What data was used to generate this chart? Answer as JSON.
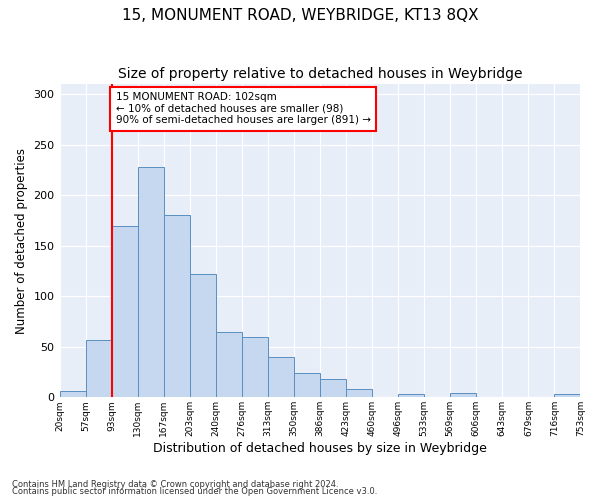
{
  "title": "15, MONUMENT ROAD, WEYBRIDGE, KT13 8QX",
  "subtitle": "Size of property relative to detached houses in Weybridge",
  "xlabel": "Distribution of detached houses by size in Weybridge",
  "ylabel": "Number of detached properties",
  "bar_values": [
    6,
    57,
    170,
    228,
    180,
    122,
    65,
    60,
    40,
    24,
    18,
    8,
    0,
    3,
    0,
    4,
    0,
    0,
    0,
    3
  ],
  "bin_labels": [
    "20sqm",
    "57sqm",
    "93sqm",
    "130sqm",
    "167sqm",
    "203sqm",
    "240sqm",
    "276sqm",
    "313sqm",
    "350sqm",
    "386sqm",
    "423sqm",
    "460sqm",
    "496sqm",
    "533sqm",
    "569sqm",
    "606sqm",
    "643sqm",
    "679sqm",
    "716sqm",
    "753sqm"
  ],
  "bar_color": "#c5d8f0",
  "bar_edge_color": "#5a8fc0",
  "vline_index": 2,
  "annotation_text": "15 MONUMENT ROAD: 102sqm\n← 10% of detached houses are smaller (98)\n90% of semi-detached houses are larger (891) →",
  "annotation_box_color": "white",
  "annotation_box_edge_color": "red",
  "vline_color": "red",
  "ylim": [
    0,
    310
  ],
  "yticks": [
    0,
    50,
    100,
    150,
    200,
    250,
    300
  ],
  "footnote1": "Contains HM Land Registry data © Crown copyright and database right 2024.",
  "footnote2": "Contains public sector information licensed under the Open Government Licence v3.0.",
  "background_color": "#e8eef8",
  "title_fontsize": 11,
  "subtitle_fontsize": 10,
  "xlabel_fontsize": 9,
  "ylabel_fontsize": 8.5
}
